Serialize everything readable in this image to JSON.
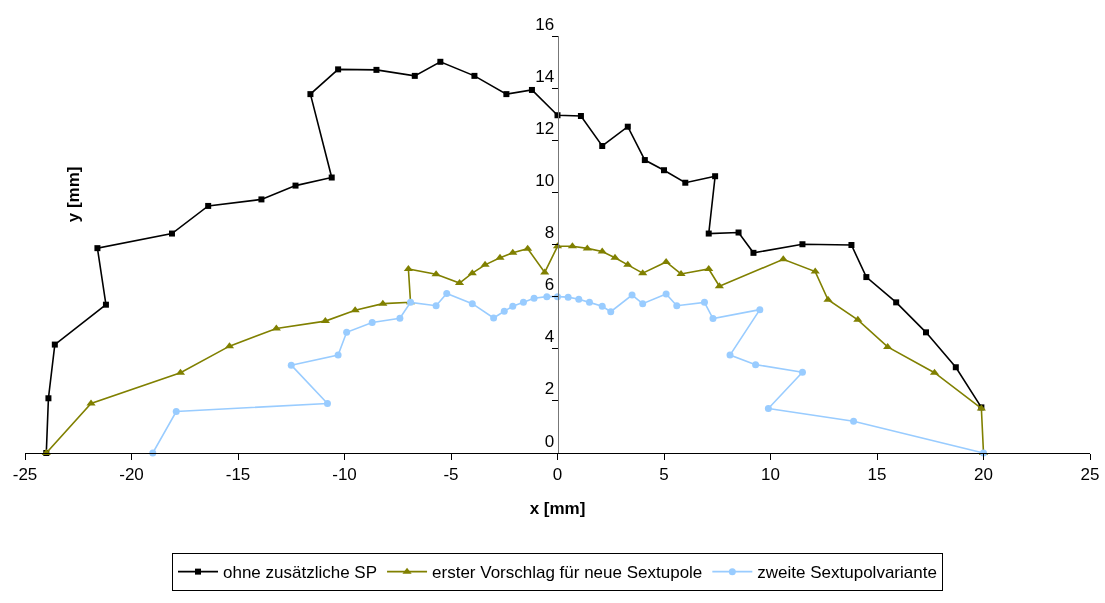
{
  "chart_data": {
    "type": "line",
    "xlabel": "x [mm]",
    "ylabel": "y [mm]",
    "xlim": [
      -25,
      25
    ],
    "xticks": [
      -25,
      -20,
      -15,
      -10,
      -5,
      0,
      5,
      10,
      15,
      20,
      25
    ],
    "ylim": [
      0,
      16
    ],
    "yticks": [
      0,
      2,
      4,
      6,
      8,
      10,
      12,
      14,
      16
    ],
    "grid": false,
    "legend": "bottom",
    "line_style": "solid",
    "series": [
      {
        "name": "ohne zusätzliche SP",
        "color": "#000000",
        "marker": "square",
        "x": [
          -24.0,
          -23.9,
          -23.6,
          -21.2,
          -21.6,
          -18.1,
          -16.4,
          -13.9,
          -12.3,
          -10.6,
          -11.6,
          -10.3,
          -8.5,
          -6.7,
          -5.5,
          -3.9,
          -2.4,
          -1.2,
          0,
          1.1,
          2.1,
          3.3,
          4.1,
          5.0,
          6.0,
          7.4,
          7.1,
          8.5,
          9.2,
          11.5,
          13.8,
          14.5,
          15.9,
          17.3,
          18.7,
          19.9
        ],
        "values": [
          0,
          2.1,
          4.16,
          5.69,
          7.86,
          8.42,
          9.48,
          9.73,
          10.26,
          10.57,
          13.77,
          14.72,
          14.7,
          14.47,
          15.01,
          14.47,
          13.77,
          13.93,
          12.96,
          12.93,
          11.78,
          12.52,
          11.24,
          10.85,
          10.37,
          10.62,
          8.42,
          8.46,
          7.68,
          8.01,
          7.98,
          6.75,
          5.78,
          4.63,
          3.29,
          1.75
        ]
      },
      {
        "name": "erster Vorschlag für neue Sextupole",
        "color": "#808000",
        "marker": "triangle",
        "x": [
          -24.0,
          -21.9,
          -17.7,
          -15.4,
          -13.2,
          -10.9,
          -9.5,
          -8.2,
          -6.9,
          -7.0,
          -5.7,
          -4.6,
          -4.0,
          -3.4,
          -2.7,
          -2.1,
          -1.4,
          -0.6,
          0,
          0.7,
          1.4,
          2.1,
          2.7,
          3.3,
          4.0,
          5.1,
          5.8,
          7.1,
          7.6,
          10.6,
          12.1,
          12.7,
          14.1,
          15.5,
          17.7,
          19.9,
          20.0
        ],
        "values": [
          0,
          1.9,
          3.08,
          4.1,
          4.78,
          5.06,
          5.48,
          5.73,
          5.78,
          7.06,
          6.86,
          6.52,
          6.9,
          7.22,
          7.49,
          7.68,
          7.84,
          6.93,
          7.93,
          7.93,
          7.85,
          7.73,
          7.49,
          7.22,
          6.9,
          7.33,
          6.87,
          7.06,
          6.4,
          7.43,
          6.96,
          5.88,
          5.11,
          4.07,
          3.08,
          1.71,
          0
        ]
      },
      {
        "name": "zweite Sextupolvariante",
        "color": "#99ccff",
        "marker": "circle",
        "x": [
          -19.0,
          -17.9,
          -10.8,
          -12.5,
          -10.3,
          -9.9,
          -8.7,
          -7.4,
          -6.9,
          -5.7,
          -5.2,
          -4.0,
          -3.0,
          -2.5,
          -2.1,
          -1.6,
          -1.1,
          -0.5,
          0,
          0.5,
          1.0,
          1.5,
          2.1,
          2.5,
          3.5,
          4.0,
          5.1,
          5.6,
          6.9,
          7.3,
          9.5,
          8.1,
          9.3,
          11.5,
          9.9,
          13.9,
          20.0
        ],
        "values": [
          0,
          1.59,
          1.9,
          3.37,
          3.76,
          4.63,
          5.01,
          5.17,
          5.78,
          5.65,
          6.12,
          5.73,
          5.18,
          5.44,
          5.63,
          5.78,
          5.94,
          6.0,
          6.0,
          5.98,
          5.9,
          5.78,
          5.63,
          5.42,
          6.06,
          5.73,
          6.1,
          5.65,
          5.78,
          5.16,
          5.5,
          3.76,
          3.39,
          3.1,
          1.71,
          1.22,
          0
        ]
      }
    ]
  }
}
